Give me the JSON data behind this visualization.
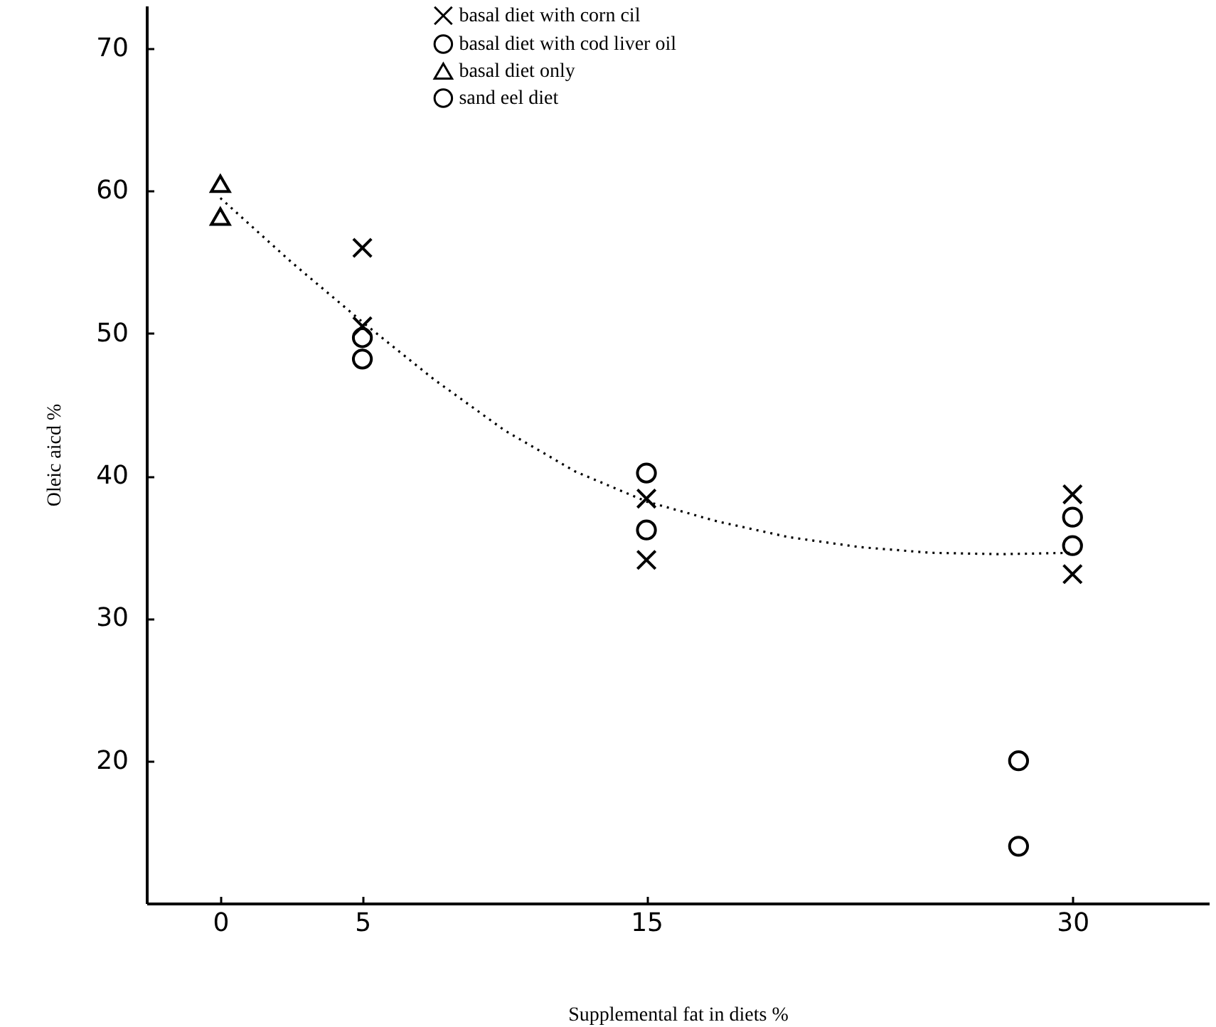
{
  "chart_data": {
    "type": "scatter",
    "xlabel": "Supplemental fat in diets %",
    "ylabel": "Oleic aicd %",
    "xlim": [
      -2.6,
      34.8
    ],
    "ylim": [
      10,
      73
    ],
    "xticks": [
      0,
      5,
      15,
      30
    ],
    "yticks": [
      20,
      30,
      40,
      50,
      60,
      70
    ],
    "grid": false,
    "legend": "top",
    "series": [
      {
        "name": "basal diet with corn cil",
        "color": "#000000",
        "marker": "cross",
        "x": [
          5,
          5,
          15,
          15,
          30,
          30
        ],
        "values": [
          56,
          50.5,
          38.4,
          34.1,
          38.7,
          33.1
        ]
      },
      {
        "name": "basal diet with cod liver oil",
        "color": "#000000",
        "marker": "circle",
        "x": [
          5,
          5,
          15,
          15,
          30,
          30
        ],
        "values": [
          49.7,
          48.2,
          40.2,
          36.2,
          37.1,
          35.1
        ]
      },
      {
        "name": "basal diet only",
        "color": "#000000",
        "marker": "triangle",
        "x": [
          0,
          0
        ],
        "values": [
          60.5,
          58.2
        ]
      },
      {
        "name": "sand eel diet",
        "color": "#000000",
        "marker": "circle",
        "x": [
          28.1,
          28.1
        ],
        "values": [
          20,
          14
        ]
      },
      {
        "type": "line",
        "color": "#000000",
        "line_style": "dotted",
        "marker": "none",
        "x": [
          0,
          2.5,
          5,
          7.5,
          10,
          12.5,
          15,
          17.5,
          20,
          22.5,
          25,
          27.5,
          30
        ],
        "values": [
          59.5,
          55,
          50.8,
          46.8,
          43.2,
          40.3,
          38.2,
          36.8,
          35.7,
          35,
          34.6,
          34.5,
          34.6
        ]
      }
    ]
  }
}
